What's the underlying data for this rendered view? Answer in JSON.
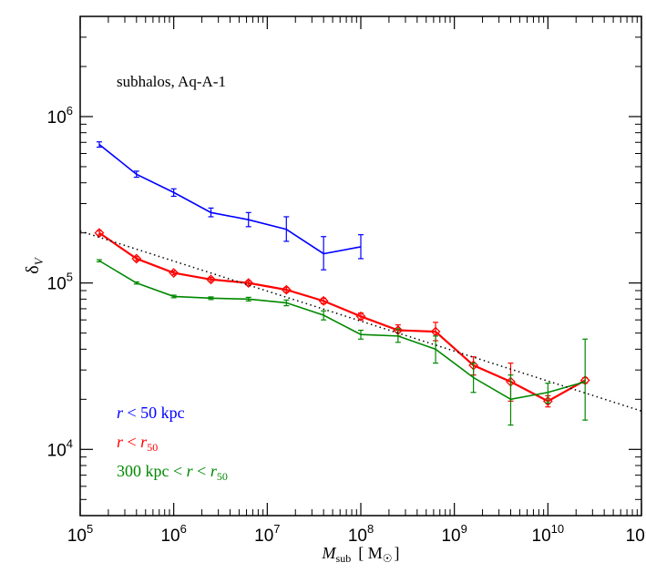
{
  "chart_data": {
    "type": "line",
    "title": "",
    "annotation": "subhalos, Aq-A-1",
    "xlabel_main": "M",
    "xlabel_sub": "sub",
    "xlabel_unit": "[ M",
    "xlabel_unit_close": "]",
    "ylabel_main": "δ",
    "ylabel_sub": "V",
    "x_scale": "log",
    "y_scale": "log",
    "xlim": [
      100000,
      100000000000
    ],
    "ylim": [
      4000,
      4000000
    ],
    "x_ticks": [
      {
        "value": 100000,
        "base": "10",
        "exp": "5"
      },
      {
        "value": 1000000,
        "base": "10",
        "exp": "6"
      },
      {
        "value": 10000000,
        "base": "10",
        "exp": "7"
      },
      {
        "value": 100000000,
        "base": "10",
        "exp": "8"
      },
      {
        "value": 1000000000,
        "base": "10",
        "exp": "9"
      },
      {
        "value": 10000000000,
        "base": "10",
        "exp": "10"
      },
      {
        "value": 100000000000,
        "base": "10",
        "exp": "11"
      }
    ],
    "y_ticks": [
      {
        "value": 10000,
        "base": "10",
        "exp": "4"
      },
      {
        "value": 100000,
        "base": "10",
        "exp": "5"
      },
      {
        "value": 1000000,
        "base": "10",
        "exp": "6"
      }
    ],
    "grid": false,
    "legend_position": "bottom-left",
    "series": [
      {
        "legend_parts": [
          {
            "text": "r",
            "italic": true
          },
          {
            "text": " < 50 kpc"
          }
        ],
        "color": "#0000ff",
        "marker": "none",
        "points": [
          {
            "x": 160000,
            "y": 680000,
            "lo": 655000,
            "hi": 705000
          },
          {
            "x": 400000,
            "y": 450000,
            "lo": 432000,
            "hi": 470000
          },
          {
            "x": 1000000,
            "y": 350000,
            "lo": 332000,
            "hi": 368000
          },
          {
            "x": 2500000,
            "y": 265000,
            "lo": 250000,
            "hi": 282000
          },
          {
            "x": 6300000,
            "y": 240000,
            "lo": 218000,
            "hi": 265000
          },
          {
            "x": 16000000,
            "y": 210000,
            "lo": 178000,
            "hi": 250000
          },
          {
            "x": 40000000,
            "y": 150000,
            "lo": 120000,
            "hi": 190000
          },
          {
            "x": 100000000,
            "y": 165000,
            "lo": 140000,
            "hi": 195000
          }
        ]
      },
      {
        "legend_parts": [
          {
            "text": "r",
            "italic": true
          },
          {
            "text": " < "
          },
          {
            "text": "r",
            "italic": true
          },
          {
            "text": "50",
            "sub": true
          }
        ],
        "color": "#ff0000",
        "marker": "diamond",
        "points": [
          {
            "x": 160000,
            "y": 200000,
            "lo": 194000,
            "hi": 206000
          },
          {
            "x": 400000,
            "y": 140000,
            "lo": 136000,
            "hi": 144000
          },
          {
            "x": 1000000,
            "y": 115000,
            "lo": 112000,
            "hi": 118000
          },
          {
            "x": 2500000,
            "y": 105000,
            "lo": 102000,
            "hi": 108000
          },
          {
            "x": 6300000,
            "y": 100000,
            "lo": 97000,
            "hi": 103000
          },
          {
            "x": 16000000,
            "y": 91000,
            "lo": 88000,
            "hi": 94000
          },
          {
            "x": 40000000,
            "y": 78000,
            "lo": 75000,
            "hi": 81000
          },
          {
            "x": 100000000,
            "y": 63000,
            "lo": 60000,
            "hi": 66000
          },
          {
            "x": 250000000,
            "y": 52000,
            "lo": 48000,
            "hi": 56000
          },
          {
            "x": 630000000,
            "y": 51000,
            "lo": 45000,
            "hi": 58000
          },
          {
            "x": 1600000000,
            "y": 32000,
            "lo": 28000,
            "hi": 36000
          },
          {
            "x": 4000000000,
            "y": 25500,
            "lo": 19500,
            "hi": 33000
          },
          {
            "x": 10000000000,
            "y": 19500,
            "lo": 18000,
            "hi": 21000
          },
          {
            "x": 25000000000,
            "y": 26000,
            "lo": 25000,
            "hi": 27000
          }
        ]
      },
      {
        "legend_parts": [
          {
            "text": "300 kpc < "
          },
          {
            "text": "r",
            "italic": true
          },
          {
            "text": " < "
          },
          {
            "text": "r",
            "italic": true
          },
          {
            "text": "50",
            "sub": true
          }
        ],
        "color": "#008800",
        "marker": "none",
        "points": [
          {
            "x": 160000,
            "y": 136000,
            "lo": 134000,
            "hi": 138000
          },
          {
            "x": 400000,
            "y": 100000,
            "lo": 98500,
            "hi": 101500
          },
          {
            "x": 1000000,
            "y": 83000,
            "lo": 81500,
            "hi": 84500
          },
          {
            "x": 2500000,
            "y": 81000,
            "lo": 79500,
            "hi": 82500
          },
          {
            "x": 6300000,
            "y": 80000,
            "lo": 78000,
            "hi": 82000
          },
          {
            "x": 16000000,
            "y": 76000,
            "lo": 73000,
            "hi": 79000
          },
          {
            "x": 40000000,
            "y": 64000,
            "lo": 60000,
            "hi": 68000
          },
          {
            "x": 100000000,
            "y": 49000,
            "lo": 46000,
            "hi": 52000
          },
          {
            "x": 250000000,
            "y": 48000,
            "lo": 44000,
            "hi": 53000
          },
          {
            "x": 630000000,
            "y": 40000,
            "lo": 33000,
            "hi": 48000
          },
          {
            "x": 1600000000,
            "y": 27000,
            "lo": 22000,
            "hi": 33000
          },
          {
            "x": 4000000000,
            "y": 20000,
            "lo": 14000,
            "hi": 28000
          },
          {
            "x": 10000000000,
            "y": 22000,
            "lo": 19000,
            "hi": 25000
          },
          {
            "x": 25000000000,
            "y": 25500,
            "lo": 15000,
            "hi": 46000
          }
        ]
      },
      {
        "name": "fit",
        "color": "#000000",
        "style": "dotted",
        "points": [
          {
            "x": 100000,
            "y": 205000
          },
          {
            "x": 100000000000,
            "y": 17000
          }
        ]
      }
    ]
  }
}
